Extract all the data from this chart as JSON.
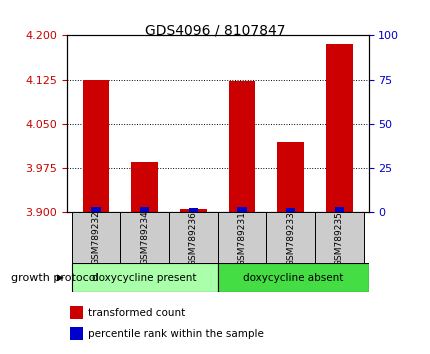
{
  "title": "GDS4096 / 8107847",
  "samples": [
    "GSM789232",
    "GSM789234",
    "GSM789236",
    "GSM789231",
    "GSM789233",
    "GSM789235"
  ],
  "transformed_counts": [
    4.124,
    3.985,
    3.905,
    4.122,
    4.02,
    4.185
  ],
  "percentile_ranks": [
    3.0,
    3.0,
    2.5,
    3.0,
    2.5,
    3.0
  ],
  "ylim_left": [
    3.9,
    4.2
  ],
  "ylim_right": [
    0,
    100
  ],
  "yticks_left": [
    3.9,
    3.975,
    4.05,
    4.125,
    4.2
  ],
  "yticks_right": [
    0,
    25,
    50,
    75,
    100
  ],
  "bar_color_red": "#cc0000",
  "bar_color_blue": "#0000cc",
  "bar_width": 0.55,
  "group1_label": "doxycycline present",
  "group2_label": "doxycycline absent",
  "group_label_prefix": "growth protocol",
  "group1_color": "#aaffaa",
  "group2_color": "#44dd44",
  "legend_red_label": "transformed count",
  "legend_blue_label": "percentile rank within the sample",
  "tick_color_left": "#cc0000",
  "tick_color_right": "#0000cc",
  "label_box_color": "#cccccc"
}
